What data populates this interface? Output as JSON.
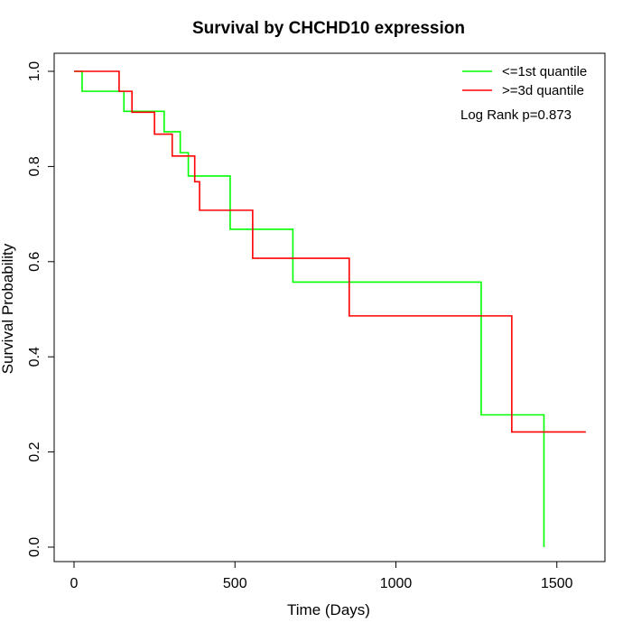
{
  "chart_data": {
    "type": "line",
    "title": "Survival by CHCHD10 expression",
    "xlabel": "Time (Days)",
    "ylabel": "Survival Probability",
    "xlim": [
      0,
      1600
    ],
    "ylim": [
      0,
      1
    ],
    "xticks": [
      0,
      500,
      1000,
      1500
    ],
    "xtick_labels": [
      "0",
      "500",
      "1000",
      "1500"
    ],
    "yticks": [
      0,
      0.2,
      0.4,
      0.6,
      0.8,
      1.0
    ],
    "ytick_labels": [
      "0.0",
      "0.2",
      "0.4",
      "0.6",
      "0.8",
      "1.0"
    ],
    "grid": false,
    "legend_position": "top-right",
    "annotation": "Log Rank p=0.873",
    "series": [
      {
        "name": "<=1st quantile",
        "color": "#00ff00",
        "step": true,
        "x": [
          0,
          25,
          155,
          280,
          330,
          355,
          485,
          680,
          1265,
          1460,
          1460
        ],
        "y": [
          1.0,
          0.958,
          0.916,
          0.873,
          0.829,
          0.78,
          0.668,
          0.557,
          0.278,
          0.278,
          0.0
        ]
      },
      {
        "name": ">=3d quantile",
        "color": "#ff0000",
        "step": true,
        "x": [
          0,
          140,
          180,
          250,
          305,
          375,
          390,
          555,
          855,
          1360,
          1590
        ],
        "y": [
          1.0,
          0.958,
          0.914,
          0.868,
          0.822,
          0.768,
          0.708,
          0.607,
          0.486,
          0.242,
          0.242
        ]
      }
    ]
  }
}
